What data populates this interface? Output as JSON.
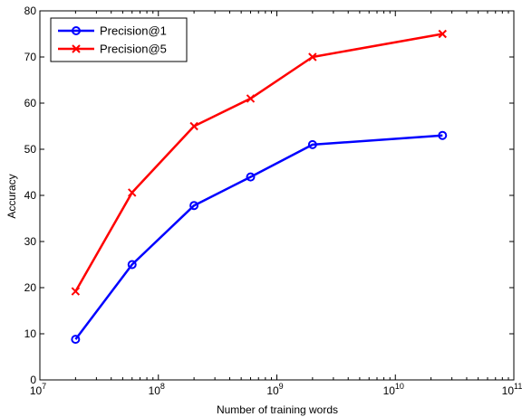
{
  "chart_data": {
    "type": "line",
    "title": "",
    "xlabel": "Number of training words",
    "ylabel": "Accuracy",
    "xscale": "log",
    "xlim": [
      10000000,
      100000000000
    ],
    "ylim": [
      0,
      80
    ],
    "grid": false,
    "legend_position": "top-left",
    "x_ticks": [
      {
        "base": "10",
        "exp": "7",
        "value": 10000000
      },
      {
        "base": "10",
        "exp": "8",
        "value": 100000000
      },
      {
        "base": "10",
        "exp": "9",
        "value": 1000000000
      },
      {
        "base": "10",
        "exp": "10",
        "value": 10000000000
      },
      {
        "base": "10",
        "exp": "11",
        "value": 100000000000
      }
    ],
    "y_ticks": [
      {
        "label": "0",
        "value": 0
      },
      {
        "label": "10",
        "value": 10
      },
      {
        "label": "20",
        "value": 20
      },
      {
        "label": "30",
        "value": 30
      },
      {
        "label": "40",
        "value": 40
      },
      {
        "label": "50",
        "value": 50
      },
      {
        "label": "60",
        "value": 60
      },
      {
        "label": "70",
        "value": 70
      },
      {
        "label": "80",
        "value": 80
      }
    ],
    "x": [
      20000000,
      60000000,
      200000000,
      600000000,
      2000000000,
      25000000000
    ],
    "series": [
      {
        "name": "Precision@1",
        "color": "#0000ff",
        "marker": "circle",
        "values": [
          8.8,
          25,
          37.8,
          44,
          51,
          53
        ]
      },
      {
        "name": "Precision@5",
        "color": "#ff0000",
        "marker": "x",
        "values": [
          19.2,
          40.6,
          55,
          61,
          70,
          75
        ]
      }
    ]
  }
}
